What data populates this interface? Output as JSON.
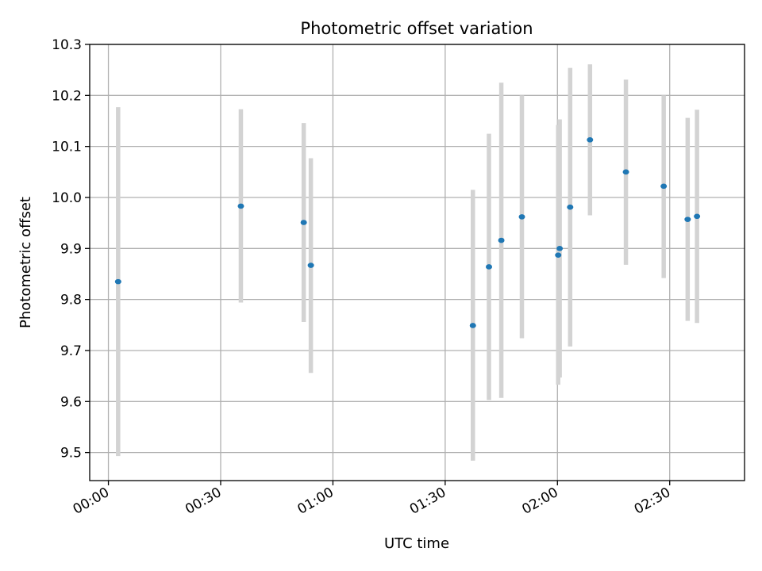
{
  "chart_data": {
    "type": "scatter",
    "title": "Photometric offset variation",
    "xlabel": "UTC time",
    "ylabel": "Photometric offset",
    "x_unit": "minutes after 00:00 UTC",
    "xlim": [
      -5,
      170
    ],
    "ylim": [
      9.445,
      10.3
    ],
    "grid": true,
    "x_ticks": [
      {
        "value": 0,
        "label": "00:00"
      },
      {
        "value": 30,
        "label": "00:30"
      },
      {
        "value": 60,
        "label": "01:00"
      },
      {
        "value": 90,
        "label": "01:30"
      },
      {
        "value": 120,
        "label": "02:00"
      },
      {
        "value": 150,
        "label": "02:30"
      }
    ],
    "y_ticks": [
      {
        "value": 9.5,
        "label": "9.5"
      },
      {
        "value": 9.6,
        "label": "9.6"
      },
      {
        "value": 9.7,
        "label": "9.7"
      },
      {
        "value": 9.8,
        "label": "9.8"
      },
      {
        "value": 9.9,
        "label": "9.9"
      },
      {
        "value": 10.0,
        "label": "10.0"
      },
      {
        "value": 10.1,
        "label": "10.1"
      },
      {
        "value": 10.2,
        "label": "10.2"
      },
      {
        "value": 10.3,
        "label": "10.3"
      }
    ],
    "colors": {
      "point": "#1f77b4",
      "errorbar": "#d3d3d3",
      "grid": "#b0b0b0"
    },
    "points": [
      {
        "x": 2.6,
        "y": 9.835,
        "ylow": 9.493,
        "yhigh": 10.177
      },
      {
        "x": 35.4,
        "y": 9.983,
        "ylow": 9.794,
        "yhigh": 10.173
      },
      {
        "x": 52.2,
        "y": 9.951,
        "ylow": 9.756,
        "yhigh": 10.146
      },
      {
        "x": 54.1,
        "y": 9.867,
        "ylow": 9.656,
        "yhigh": 10.077
      },
      {
        "x": 97.4,
        "y": 9.749,
        "ylow": 9.484,
        "yhigh": 10.015
      },
      {
        "x": 101.7,
        "y": 9.864,
        "ylow": 9.603,
        "yhigh": 10.125
      },
      {
        "x": 105.0,
        "y": 9.916,
        "ylow": 9.607,
        "yhigh": 10.225
      },
      {
        "x": 110.5,
        "y": 9.962,
        "ylow": 9.724,
        "yhigh": 10.2
      },
      {
        "x": 120.2,
        "y": 9.887,
        "ylow": 9.633,
        "yhigh": 10.142
      },
      {
        "x": 120.6,
        "y": 9.9,
        "ylow": 9.647,
        "yhigh": 10.153
      },
      {
        "x": 123.4,
        "y": 9.981,
        "ylow": 9.708,
        "yhigh": 10.254
      },
      {
        "x": 128.7,
        "y": 10.113,
        "ylow": 9.965,
        "yhigh": 10.261
      },
      {
        "x": 138.3,
        "y": 10.05,
        "ylow": 9.868,
        "yhigh": 10.231
      },
      {
        "x": 148.4,
        "y": 10.022,
        "ylow": 9.842,
        "yhigh": 10.2
      },
      {
        "x": 154.8,
        "y": 9.957,
        "ylow": 9.758,
        "yhigh": 10.156
      },
      {
        "x": 157.3,
        "y": 9.963,
        "ylow": 9.754,
        "yhigh": 10.172
      }
    ]
  }
}
